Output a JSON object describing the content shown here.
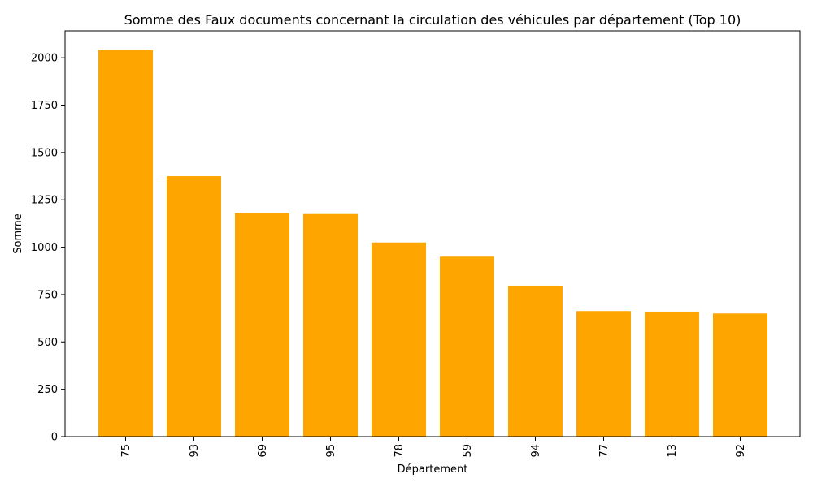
{
  "chart_data": {
    "type": "bar",
    "title": "Somme des Faux documents concernant la circulation des véhicules par département (Top 10)",
    "xlabel": "Département",
    "ylabel": "Somme",
    "categories": [
      "75",
      "93",
      "69",
      "95",
      "78",
      "59",
      "94",
      "77",
      "13",
      "92"
    ],
    "values": [
      2040,
      1375,
      1180,
      1175,
      1025,
      950,
      797,
      663,
      660,
      650
    ],
    "ylim": [
      0,
      2142
    ],
    "yticks": [
      0,
      250,
      500,
      750,
      1000,
      1250,
      1500,
      1750,
      2000
    ],
    "grid": false,
    "bar_color": "#ffa500"
  }
}
